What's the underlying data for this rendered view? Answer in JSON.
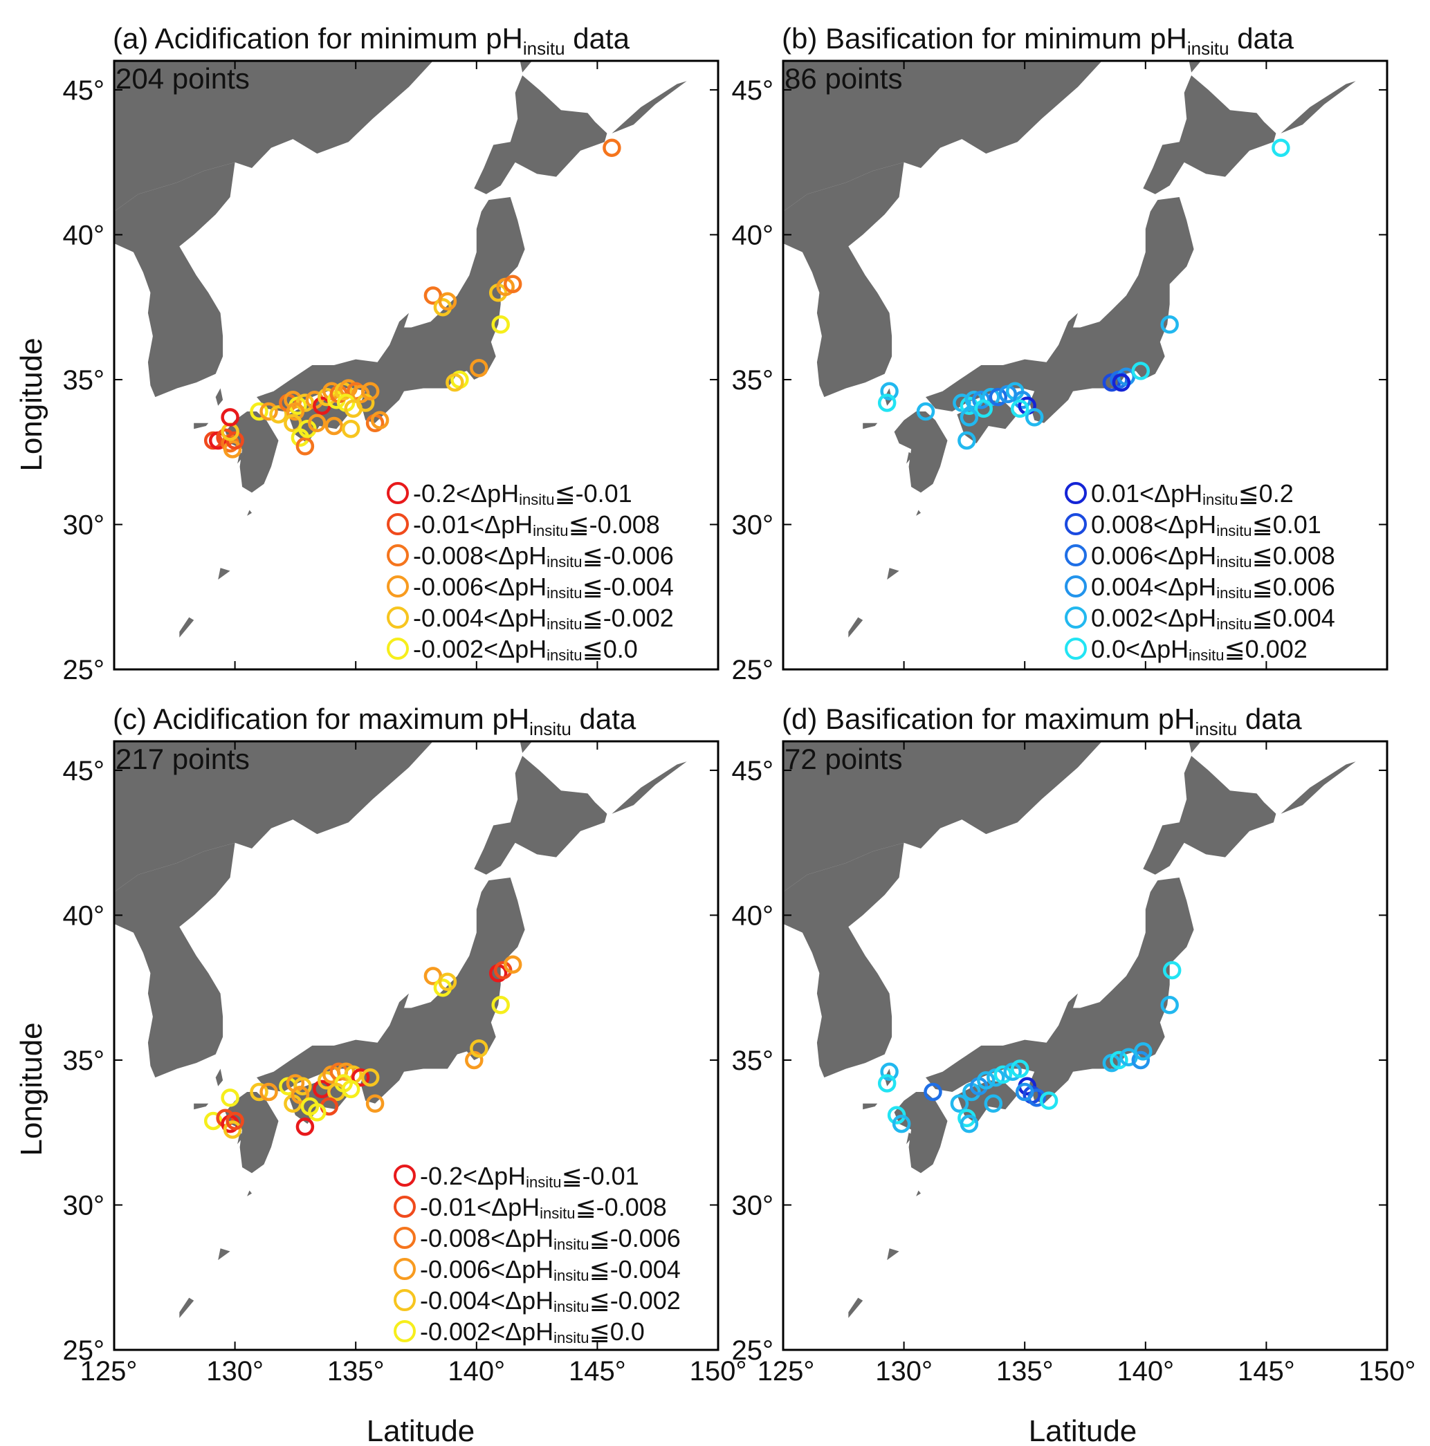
{
  "x_axis_title": "Latitude",
  "y_axis_title": "Longitude",
  "x_ticks": [
    "125°",
    "130°",
    "135°",
    "140°",
    "145°",
    "150°"
  ],
  "x_tick_values": [
    125,
    130,
    135,
    140,
    145,
    150
  ],
  "y_ticks": [
    "25°",
    "30°",
    "35°",
    "40°",
    "45°"
  ],
  "y_tick_values": [
    25,
    30,
    35,
    40,
    45
  ],
  "map_extent": {
    "lon": [
      125,
      150
    ],
    "lat": [
      25,
      46
    ]
  },
  "land_color": "#6b6b6b",
  "panels": [
    {
      "id": "a",
      "title_prefix": "(a) Acidification for minimum pH",
      "title_sub": "insitu",
      "title_suffix": " data",
      "count_label": "204 points",
      "legend": [
        {
          "low": "-0.2",
          "high": "-0.01",
          "color": "#e8191b"
        },
        {
          "low": "-0.01",
          "high": "-0.008",
          "color": "#f04a1c"
        },
        {
          "low": "-0.008",
          "high": "-0.006",
          "color": "#f5751d"
        },
        {
          "low": "-0.006",
          "high": "-0.004",
          "color": "#f89b1f"
        },
        {
          "low": "-0.004",
          "high": "-0.002",
          "color": "#f7c51f"
        },
        {
          "low": "-0.002",
          "high": "0.0",
          "color": "#f6ee1c"
        }
      ],
      "points": [
        [
          129.1,
          32.9,
          1
        ],
        [
          129.3,
          32.9,
          0
        ],
        [
          129.6,
          33.0,
          1
        ],
        [
          129.8,
          32.8,
          2
        ],
        [
          129.9,
          32.6,
          3
        ],
        [
          130.0,
          32.9,
          1
        ],
        [
          129.8,
          33.2,
          4
        ],
        [
          129.8,
          33.7,
          0
        ],
        [
          131.0,
          33.9,
          5
        ],
        [
          131.4,
          33.9,
          3
        ],
        [
          131.8,
          33.8,
          4
        ],
        [
          132.2,
          34.2,
          2
        ],
        [
          132.4,
          34.3,
          3
        ],
        [
          132.6,
          34.1,
          5
        ],
        [
          132.9,
          34.2,
          4
        ],
        [
          132.5,
          33.9,
          3
        ],
        [
          132.4,
          33.5,
          4
        ],
        [
          132.7,
          33.0,
          5
        ],
        [
          132.9,
          32.7,
          2
        ],
        [
          133.3,
          34.3,
          3
        ],
        [
          133.6,
          34.1,
          0
        ],
        [
          133.8,
          34.4,
          4
        ],
        [
          134.0,
          34.6,
          3
        ],
        [
          134.2,
          34.3,
          5
        ],
        [
          134.3,
          34.5,
          2
        ],
        [
          134.5,
          34.6,
          4
        ],
        [
          134.7,
          34.7,
          3
        ],
        [
          135.0,
          34.6,
          2
        ],
        [
          135.2,
          34.5,
          3
        ],
        [
          134.6,
          34.2,
          5
        ],
        [
          134.9,
          34.0,
          4
        ],
        [
          134.1,
          33.4,
          3
        ],
        [
          134.8,
          33.3,
          4
        ],
        [
          133.0,
          33.3,
          5
        ],
        [
          133.4,
          33.5,
          3
        ],
        [
          135.8,
          33.5,
          2
        ],
        [
          136.0,
          33.6,
          3
        ],
        [
          135.4,
          34.2,
          4
        ],
        [
          135.6,
          34.6,
          3
        ],
        [
          138.2,
          37.9,
          2
        ],
        [
          138.6,
          37.5,
          4
        ],
        [
          138.8,
          37.7,
          3
        ],
        [
          140.9,
          38.0,
          4
        ],
        [
          141.2,
          38.2,
          3
        ],
        [
          141.5,
          38.3,
          2
        ],
        [
          141.0,
          36.9,
          5
        ],
        [
          139.3,
          35.0,
          5
        ],
        [
          139.1,
          34.9,
          4
        ],
        [
          140.1,
          35.4,
          3
        ],
        [
          145.6,
          43.0,
          2
        ]
      ]
    },
    {
      "id": "b",
      "title_prefix": "(b) Basification for minimum pH",
      "title_sub": "insitu",
      "title_suffix": " data",
      "count_label": "86 points",
      "legend": [
        {
          "low": "0.01",
          "high": "0.2",
          "color": "#1424d6"
        },
        {
          "low": "0.008",
          "high": "0.01",
          "color": "#1a4ae0"
        },
        {
          "low": "0.006",
          "high": "0.008",
          "color": "#1f6fe6"
        },
        {
          "low": "0.004",
          "high": "0.006",
          "color": "#2294ec"
        },
        {
          "low": "0.002",
          "high": "0.004",
          "color": "#22b8ef"
        },
        {
          "low": "0.0",
          "high": "0.002",
          "color": "#22e4f3"
        }
      ],
      "points": [
        [
          129.4,
          34.6,
          4
        ],
        [
          129.3,
          34.2,
          5
        ],
        [
          130.9,
          33.9,
          4
        ],
        [
          132.4,
          34.2,
          4
        ],
        [
          132.7,
          34.1,
          5
        ],
        [
          132.9,
          34.3,
          4
        ],
        [
          133.2,
          34.3,
          3
        ],
        [
          133.6,
          34.4,
          4
        ],
        [
          133.9,
          34.4,
          2
        ],
        [
          134.3,
          34.5,
          3
        ],
        [
          134.6,
          34.6,
          4
        ],
        [
          134.9,
          34.3,
          3
        ],
        [
          135.1,
          34.1,
          0
        ],
        [
          135.4,
          33.7,
          4
        ],
        [
          133.3,
          34.0,
          5
        ],
        [
          132.7,
          33.7,
          4
        ],
        [
          132.6,
          32.9,
          4
        ],
        [
          134.8,
          34.0,
          5
        ],
        [
          138.6,
          34.9,
          1
        ],
        [
          138.9,
          35.0,
          2
        ],
        [
          139.2,
          35.1,
          3
        ],
        [
          139.0,
          34.9,
          0
        ],
        [
          139.8,
          35.3,
          5
        ],
        [
          141.0,
          36.9,
          4
        ],
        [
          145.6,
          43.0,
          5
        ]
      ]
    },
    {
      "id": "c",
      "title_prefix": "(c) Acidification for maximum pH",
      "title_sub": "insitu",
      "title_suffix": " data",
      "count_label": "217 points",
      "legend": [
        {
          "low": "-0.2",
          "high": "-0.01",
          "color": "#e8191b"
        },
        {
          "low": "-0.01",
          "high": "-0.008",
          "color": "#f04a1c"
        },
        {
          "low": "-0.008",
          "high": "-0.006",
          "color": "#f5751d"
        },
        {
          "low": "-0.006",
          "high": "-0.004",
          "color": "#f89b1f"
        },
        {
          "low": "-0.004",
          "high": "-0.002",
          "color": "#f7c51f"
        },
        {
          "low": "-0.002",
          "high": "0.0",
          "color": "#f6ee1c"
        }
      ],
      "points": [
        [
          129.1,
          32.9,
          5
        ],
        [
          129.6,
          33.0,
          1
        ],
        [
          129.8,
          32.8,
          0
        ],
        [
          129.9,
          32.6,
          4
        ],
        [
          130.0,
          32.9,
          1
        ],
        [
          129.8,
          33.7,
          5
        ],
        [
          131.0,
          33.9,
          4
        ],
        [
          131.4,
          33.9,
          3
        ],
        [
          132.2,
          34.1,
          5
        ],
        [
          132.5,
          34.2,
          3
        ],
        [
          132.8,
          34.1,
          4
        ],
        [
          132.4,
          33.5,
          4
        ],
        [
          132.7,
          33.8,
          3
        ],
        [
          132.9,
          32.7,
          0
        ],
        [
          133.1,
          33.4,
          5
        ],
        [
          133.6,
          34.0,
          0
        ],
        [
          133.8,
          34.3,
          4
        ],
        [
          134.0,
          34.5,
          3
        ],
        [
          134.3,
          34.6,
          2
        ],
        [
          134.6,
          34.6,
          3
        ],
        [
          134.9,
          34.5,
          4
        ],
        [
          135.2,
          34.4,
          0
        ],
        [
          134.5,
          34.2,
          5
        ],
        [
          134.2,
          33.9,
          4
        ],
        [
          133.9,
          33.4,
          1
        ],
        [
          133.4,
          33.2,
          5
        ],
        [
          135.8,
          33.5,
          3
        ],
        [
          135.6,
          34.4,
          4
        ],
        [
          134.8,
          34.0,
          5
        ],
        [
          138.2,
          37.9,
          3
        ],
        [
          138.6,
          37.5,
          5
        ],
        [
          138.8,
          37.7,
          4
        ],
        [
          140.9,
          38.0,
          0
        ],
        [
          141.1,
          38.1,
          1
        ],
        [
          141.5,
          38.3,
          3
        ],
        [
          141.0,
          36.9,
          5
        ],
        [
          139.9,
          35.0,
          3
        ],
        [
          140.1,
          35.4,
          4
        ]
      ]
    },
    {
      "id": "d",
      "title_prefix": "(d) Basification for maximum pH",
      "title_sub": "insitu",
      "title_suffix": " data",
      "count_label": "72 points",
      "legend": [],
      "points": [
        [
          129.4,
          34.6,
          4
        ],
        [
          129.3,
          34.2,
          5
        ],
        [
          129.7,
          33.1,
          5
        ],
        [
          129.9,
          32.8,
          4
        ],
        [
          131.2,
          33.9,
          2
        ],
        [
          132.3,
          33.5,
          4
        ],
        [
          132.6,
          33.0,
          5
        ],
        [
          132.7,
          32.8,
          4
        ],
        [
          132.8,
          33.9,
          4
        ],
        [
          133.1,
          34.1,
          3
        ],
        [
          133.4,
          34.3,
          4
        ],
        [
          133.8,
          34.4,
          4
        ],
        [
          134.1,
          34.5,
          5
        ],
        [
          134.5,
          34.6,
          4
        ],
        [
          134.8,
          34.7,
          5
        ],
        [
          135.1,
          34.1,
          0
        ],
        [
          135.3,
          33.8,
          1
        ],
        [
          135.5,
          33.7,
          2
        ],
        [
          136.0,
          33.6,
          5
        ],
        [
          133.7,
          33.5,
          4
        ],
        [
          135.0,
          33.9,
          3
        ],
        [
          138.6,
          34.9,
          4
        ],
        [
          138.9,
          35.0,
          5
        ],
        [
          139.3,
          35.1,
          4
        ],
        [
          139.8,
          35.0,
          3
        ],
        [
          139.9,
          35.3,
          4
        ],
        [
          141.0,
          36.9,
          4
        ],
        [
          141.1,
          38.1,
          5
        ]
      ]
    }
  ]
}
